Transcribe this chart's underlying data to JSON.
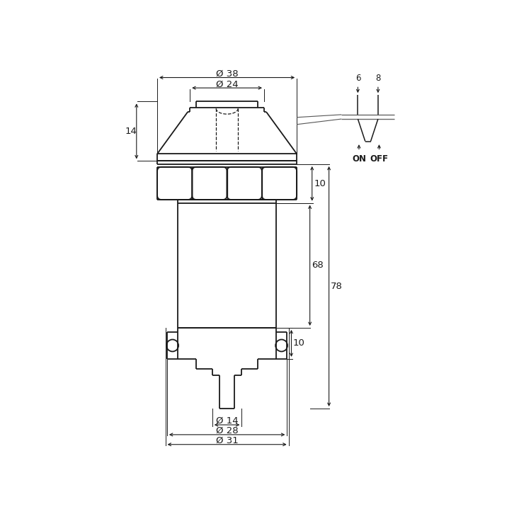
{
  "bg_color": "#ffffff",
  "line_color": "#1a1a1a",
  "figsize": [
    7.33,
    7.33
  ],
  "dpi": 100,
  "dims": {
    "d38": "Ø 38",
    "d24": "Ø 24",
    "d14_bottom": "Ø 14",
    "d28": "Ø 28",
    "d31": "Ø 31",
    "h14": "14",
    "h10_top": "10",
    "h10_bottom": "10",
    "h68": "68",
    "h78": "78",
    "w6": "6",
    "w8": "8",
    "on": "ON",
    "off": "OFF"
  }
}
